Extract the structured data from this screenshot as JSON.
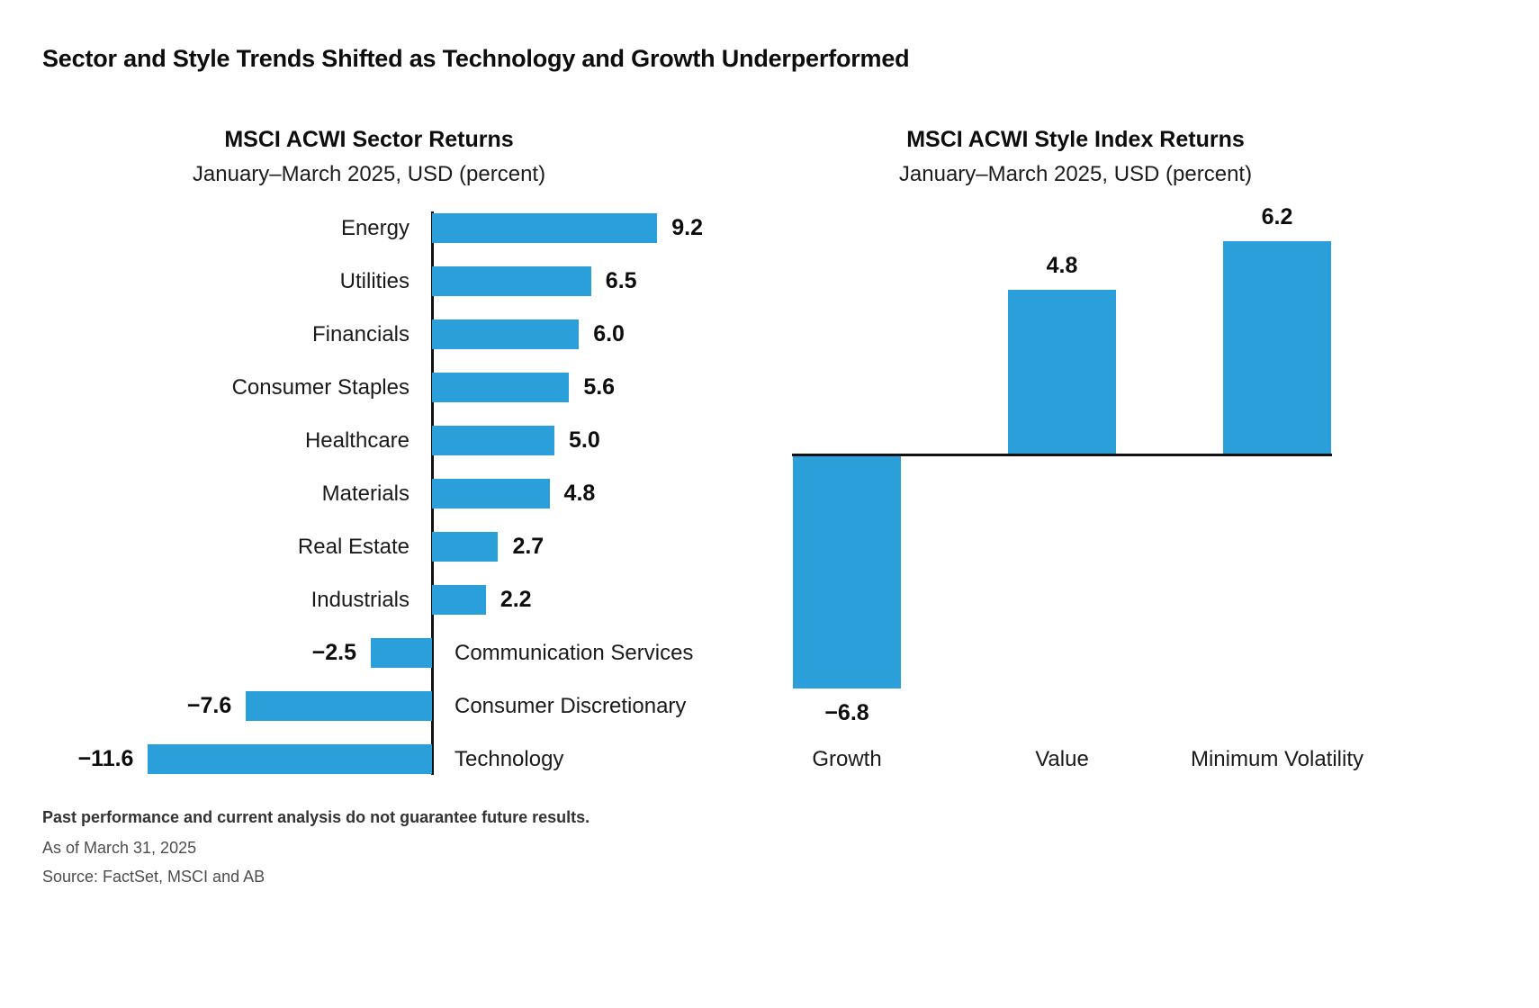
{
  "title": "Sector and Style Trends Shifted as Technology and Growth Underperformed",
  "accent_color": "#2B9FD9",
  "chart_data": [
    {
      "type": "bar",
      "orientation": "horizontal",
      "title": "MSCI ACWI Sector Returns",
      "subtitle": "January–March 2025, USD (percent)",
      "categories": [
        "Energy",
        "Utilities",
        "Financials",
        "Consumer Staples",
        "Healthcare",
        "Materials",
        "Real Estate",
        "Industrials",
        "Communication Services",
        "Consumer Discretionary",
        "Technology"
      ],
      "values": [
        9.2,
        6.5,
        6.0,
        5.6,
        5.0,
        4.8,
        2.7,
        2.2,
        -2.5,
        -7.6,
        -11.6
      ],
      "value_labels": [
        "9.2",
        "6.5",
        "6.0",
        "5.6",
        "5.0",
        "4.8",
        "2.7",
        "2.2",
        "−2.5",
        "−7.6",
        "−11.6"
      ],
      "xlim": [
        -12,
        10
      ],
      "grid": false,
      "legend": "none"
    },
    {
      "type": "bar",
      "orientation": "vertical",
      "title": "MSCI ACWI Style Index Returns",
      "subtitle": "January–March 2025, USD (percent)",
      "categories": [
        "Growth",
        "Value",
        "Minimum Volatility"
      ],
      "values": [
        -6.8,
        4.8,
        6.2
      ],
      "value_labels": [
        "−6.8",
        "4.8",
        "6.2"
      ],
      "ylim": [
        -7.5,
        7
      ],
      "grid": false,
      "legend": "none"
    }
  ],
  "footnotes": {
    "disclaimer": "Past performance and current analysis do not guarantee future results.",
    "as_of": "As of March 31, 2025",
    "source": "Source: FactSet, MSCI and AB"
  }
}
